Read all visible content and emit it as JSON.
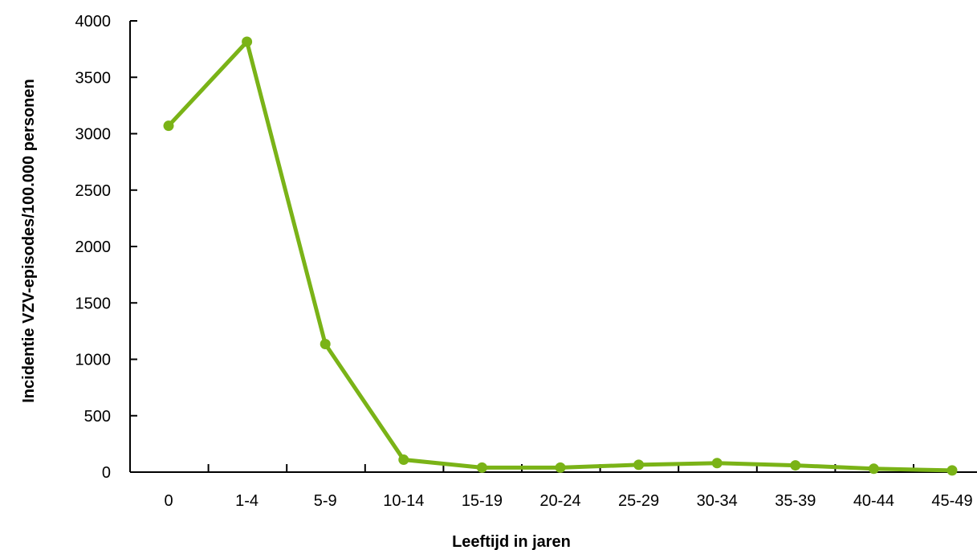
{
  "chart_data": {
    "type": "line",
    "title": "",
    "xlabel": "Leeftijd in jaren",
    "ylabel": "Incidentie VZV-episodes/100.000 personen",
    "categories": [
      "0",
      "1-4",
      "5-9",
      "10-14",
      "15-19",
      "20-24",
      "25-29",
      "30-34",
      "35-39",
      "40-44",
      "45-49"
    ],
    "series": [
      {
        "values": [
          3070,
          3815,
          1135,
          110,
          40,
          40,
          65,
          80,
          60,
          30,
          15
        ]
      }
    ],
    "y_ticks": [
      "0",
      "500",
      "1000",
      "1500",
      "2000",
      "2500",
      "3000",
      "3500",
      "4000"
    ],
    "ylim": [
      0,
      4000
    ],
    "grid": false,
    "legend": "none",
    "colors": {
      "line": "#7AB317",
      "axis": "#000000"
    }
  }
}
